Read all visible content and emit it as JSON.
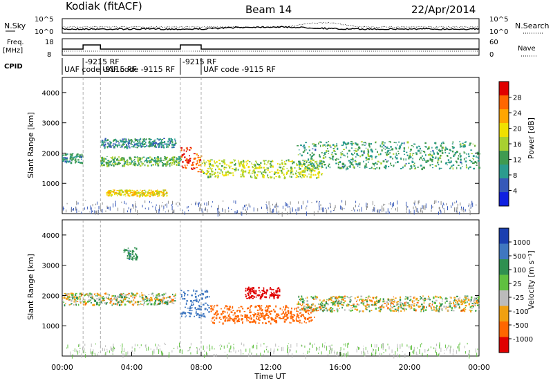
{
  "header": {
    "station": "Kodiak (fitACF)",
    "beam": "Beam 14",
    "date": "22/Apr/2014"
  },
  "top_panels": {
    "nsky_label": "N.Sky",
    "nsearch_label": "N.Search",
    "nsky_ticks": [
      "10^5",
      "10^0"
    ],
    "nsearch_ticks": [
      "10^5",
      "10^0"
    ],
    "freq_label_1": "Freq.",
    "freq_label_2": "[MHz]",
    "freq_ticks": [
      "18",
      "8"
    ],
    "nave_label": "Nave",
    "nave_ticks": [
      "60",
      "0"
    ],
    "cpid_label": "CPID",
    "cpid_segments": [
      {
        "text": "UAF code -9115 RF",
        "start_h": 0.0,
        "end_h": 1.2
      },
      {
        "text": "-9215 RF",
        "start_h": 1.2,
        "end_h": 2.2
      },
      {
        "text": "UAF code -9115 RF",
        "start_h": 2.2,
        "end_h": 6.8
      },
      {
        "text": "-9215 RF",
        "start_h": 6.8,
        "end_h": 8.0
      },
      {
        "text": "UAF code -9115 RF",
        "start_h": 8.0,
        "end_h": 24.0
      }
    ]
  },
  "power_colorbar": {
    "label": "Power [dB]",
    "ticks": [
      "28",
      "24",
      "20",
      "16",
      "12",
      "8",
      "4"
    ],
    "colors": [
      "#e00000",
      "#ff6600",
      "#ffa500",
      "#f0e000",
      "#a8d030",
      "#3f9a50",
      "#2b9b8e",
      "#3658b8",
      "#1020e0"
    ]
  },
  "velocity_colorbar": {
    "label": "Velocity [m s⁻¹]",
    "ticks": [
      "1000",
      "500",
      "100",
      "25",
      "-25",
      "-100",
      "-500",
      "-1000"
    ],
    "colors": [
      "#1a3fb0",
      "#3f77c0",
      "#2f9050",
      "#60c040",
      "#bbbbbb",
      "#f0a010",
      "#ff6600",
      "#e00000"
    ]
  },
  "chart_data": [
    {
      "type": "heatmap",
      "panel": "power",
      "ylabel": "Slant Range [km]",
      "xlabel": "Time UT",
      "xlim_hours": [
        0,
        24
      ],
      "ylim_km": [
        0,
        4500
      ],
      "yticks": [
        1000,
        2000,
        3000,
        4000
      ],
      "xtick_labels": [
        "00:00",
        "04:00",
        "08:00",
        "12:00",
        "16:00",
        "20:00",
        "00:00"
      ],
      "xtick_hours": [
        0,
        4,
        8,
        12,
        16,
        20,
        24
      ],
      "features": [
        {
          "t0": 0.0,
          "t1": 1.2,
          "r0": 1700,
          "r1": 2000,
          "power_db": 10
        },
        {
          "t0": 2.2,
          "t1": 6.8,
          "r0": 1600,
          "r1": 1900,
          "power_db": 13
        },
        {
          "t0": 2.2,
          "t1": 6.5,
          "r0": 2200,
          "r1": 2500,
          "power_db": 9
        },
        {
          "t0": 6.8,
          "t1": 7.4,
          "r0": 1500,
          "r1": 2200,
          "power_db": 28
        },
        {
          "t0": 7.4,
          "t1": 8.0,
          "r0": 1400,
          "r1": 2000,
          "power_db": 26
        },
        {
          "t0": 8.0,
          "t1": 15.0,
          "r0": 1200,
          "r1": 1800,
          "power_db": 17
        },
        {
          "t0": 13.5,
          "t1": 24.0,
          "r0": 1500,
          "r1": 2400,
          "power_db": 11
        },
        {
          "t0": 2.5,
          "t1": 6.0,
          "r0": 600,
          "r1": 800,
          "power_db": 20
        }
      ]
    },
    {
      "type": "heatmap",
      "panel": "velocity",
      "ylabel": "Slant Range [km]",
      "xlabel": "Time UT",
      "xlim_hours": [
        0,
        24
      ],
      "ylim_km": [
        0,
        4500
      ],
      "yticks": [
        1000,
        2000,
        3000,
        4000
      ],
      "xtick_labels": [
        "00:00",
        "04:00",
        "08:00",
        "12:00",
        "16:00",
        "20:00",
        "00:00"
      ],
      "xtick_hours": [
        0,
        4,
        8,
        12,
        16,
        20,
        24
      ],
      "features": [
        {
          "t0": 0.0,
          "t1": 6.5,
          "r0": 1700,
          "r1": 2100,
          "velocity": 0
        },
        {
          "t0": 6.8,
          "t1": 8.5,
          "r0": 1300,
          "r1": 2200,
          "velocity": 500
        },
        {
          "t0": 8.5,
          "t1": 14.5,
          "r0": 1100,
          "r1": 1700,
          "velocity": -300
        },
        {
          "t0": 10.5,
          "t1": 12.5,
          "r0": 1900,
          "r1": 2300,
          "velocity": -1000
        },
        {
          "t0": 13.5,
          "t1": 24.0,
          "r0": 1500,
          "r1": 2000,
          "velocity": 0
        },
        {
          "t0": 3.5,
          "t1": 4.3,
          "r0": 3200,
          "r1": 3600,
          "velocity": 200
        }
      ]
    }
  ]
}
